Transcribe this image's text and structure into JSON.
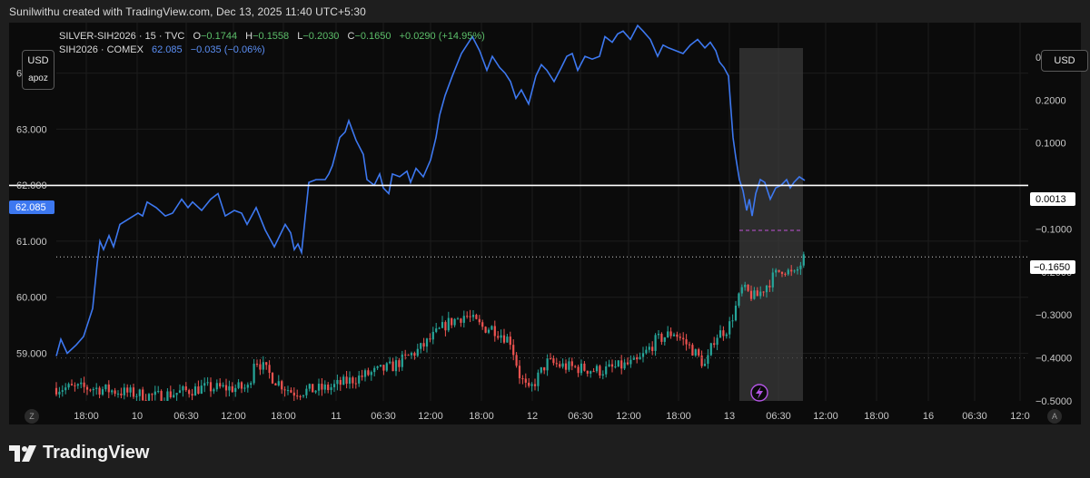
{
  "caption": "Sunilwithu created with TradingView.com, Dec 13, 2025 11:40 UTC+5:30",
  "left_scale": {
    "currency": "USD",
    "label": "apoz"
  },
  "right_scale": {
    "currency": "USD"
  },
  "legend": {
    "main": {
      "symbol": "SILVER-SIH2026 · 15 · TVC",
      "open_label": "O",
      "open": "−0.1744",
      "high_label": "H",
      "high": "−0.1558",
      "low_label": "L",
      "low": "−0.2030",
      "close_label": "C",
      "close": "−0.1650",
      "change": "+0.0290 (+14.95%)"
    },
    "compare": {
      "symbol": "SIH2026 · COMEX",
      "last": "62.085",
      "change": "−0.035 (−0.06%)"
    }
  },
  "price_labels": {
    "left_current": "62.085",
    "right_zero_line": "0.0013",
    "right_current": "−0.1650"
  },
  "badges": {
    "corner_left": "Z",
    "corner_right": "A"
  },
  "brand": "TradingView",
  "colors": {
    "line": "#3d78f0",
    "up": "#26a69a",
    "down": "#ef5350",
    "bg": "#0b0b0b",
    "highlight": "#3a3a3a"
  },
  "chart_data": {
    "type": "line",
    "x_ticks": [
      "18:00",
      "10",
      "06:30",
      "12:00",
      "18:00",
      "11",
      "06:30",
      "12:00",
      "18:00",
      "12",
      "06:30",
      "12:00",
      "18:00",
      "13",
      "06:30",
      "12:00",
      "18:00",
      "16",
      "06:30",
      "12:0"
    ],
    "left_axis": {
      "ticks": [
        "64.000",
        "63.000",
        "62.000",
        "61.000",
        "60.000",
        "59.000"
      ],
      "range": [
        58.15,
        64.9
      ]
    },
    "right_axis": {
      "ticks": [
        "0.3000",
        "0.2000",
        "0.1000",
        "−0.1000",
        "−0.2000",
        "−0.3000",
        "−0.4000",
        "−0.5000"
      ],
      "range": [
        -0.5,
        0.38
      ]
    },
    "series": [
      {
        "name": "SIH2026 · COMEX",
        "style": "line",
        "x": [
          0,
          5,
          12,
          22,
          30,
          40,
          45,
          48,
          52,
          58,
          63,
          70,
          80,
          90,
          95,
          100,
          110,
          120,
          128,
          138,
          145,
          150,
          160,
          170,
          178,
          186,
          196,
          204,
          210,
          220,
          230,
          240,
          252,
          258,
          262,
          266,
          270,
          278,
          286,
          296,
          300,
          304,
          308,
          312,
          318,
          322,
          330,
          338,
          342,
          350,
          356,
          360,
          366,
          370,
          378,
          386,
          390,
          396,
          404,
          412,
          418,
          422,
          428,
          436,
          446,
          452,
          458,
          466,
          474,
          480,
          488,
          494,
          500,
          506,
          512,
          520,
          528,
          534,
          540,
          548,
          556,
          562,
          568,
          574,
          582,
          590,
          598,
          604,
          612,
          618,
          624,
          632,
          640,
          646,
          654,
          662,
          668,
          674,
          682,
          690,
          698,
          706,
          714,
          720,
          726,
          730,
          735,
          740,
          745,
          748,
          752,
          756,
          760,
          763,
          766,
          770,
          775,
          780,
          786,
          792,
          798,
          804,
          808,
          812,
          818,
          824
        ],
        "values": [
          58.95,
          59.25,
          59.0,
          59.15,
          59.3,
          59.8,
          60.6,
          61.0,
          60.85,
          61.1,
          60.9,
          61.3,
          61.4,
          61.5,
          61.45,
          61.7,
          61.6,
          61.45,
          61.5,
          61.75,
          61.6,
          61.7,
          61.55,
          61.75,
          61.85,
          61.45,
          61.55,
          61.5,
          61.3,
          61.6,
          61.2,
          60.9,
          61.3,
          61.15,
          60.85,
          60.95,
          60.8,
          62.05,
          62.1,
          62.1,
          62.2,
          62.35,
          62.6,
          62.85,
          62.95,
          63.15,
          62.8,
          62.55,
          62.1,
          62.0,
          62.2,
          61.95,
          61.85,
          62.2,
          62.15,
          62.25,
          62.05,
          62.3,
          62.15,
          62.45,
          62.85,
          63.25,
          63.6,
          63.95,
          64.35,
          64.5,
          64.65,
          64.4,
          64.05,
          64.3,
          64.1,
          64.0,
          63.85,
          63.55,
          63.7,
          63.45,
          63.95,
          64.15,
          64.05,
          63.85,
          64.1,
          64.3,
          64.35,
          64.05,
          64.3,
          64.25,
          64.3,
          64.65,
          64.55,
          64.7,
          64.75,
          64.6,
          64.85,
          64.75,
          64.6,
          64.3,
          64.5,
          64.45,
          64.4,
          64.35,
          64.5,
          64.6,
          64.45,
          64.55,
          64.4,
          64.2,
          64.1,
          63.95,
          62.85,
          62.5,
          62.1,
          61.9,
          61.55,
          61.75,
          61.45,
          61.85,
          62.1,
          62.05,
          61.75,
          61.95,
          62.0,
          62.1,
          61.95,
          62.05,
          62.15,
          62.085
        ]
      },
      {
        "name": "SILVER-SIH2026 · 15 · TVC",
        "style": "candles",
        "x_range": [
          0,
          771
        ],
        "open": [
          -0.47
        ],
        "close": [
          -0.165
        ]
      }
    ],
    "highlight_range_x": [
      752,
      822
    ],
    "horizontal_lines": [
      {
        "axis": "right",
        "value": 0.0013,
        "style": "solid"
      },
      {
        "axis": "right",
        "value": -0.165,
        "style": "dotted"
      },
      {
        "axis": "right",
        "value": -0.4,
        "style": "faint-dotted"
      }
    ],
    "grid": true
  }
}
